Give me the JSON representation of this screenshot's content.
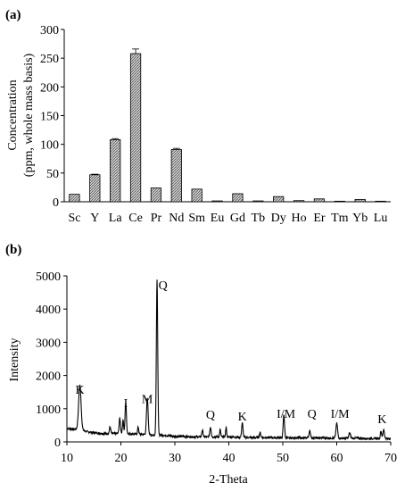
{
  "chart_data": [
    {
      "type": "bar",
      "panel_label": "(a)",
      "categories": [
        "Sc",
        "Y",
        "La",
        "Ce",
        "Pr",
        "Nd",
        "Sm",
        "Eu",
        "Gd",
        "Tb",
        "Dy",
        "Ho",
        "Er",
        "Tm",
        "Yb",
        "Lu"
      ],
      "values": [
        13,
        47,
        108,
        258,
        24,
        91,
        22,
        1.5,
        14,
        1.5,
        9,
        2,
        5,
        1,
        4,
        1
      ],
      "errors": [
        0,
        1,
        2,
        8,
        0,
        2,
        0,
        0,
        0,
        0,
        0,
        0,
        0,
        0,
        0,
        0
      ],
      "ylabel": "Concentration",
      "ylabel_units": "(ppm, whole mass basis)",
      "ylim": [
        0,
        300
      ],
      "yticks": [
        0,
        50,
        100,
        150,
        200,
        250,
        300
      ],
      "bar_fill": "hatched-gray",
      "grid": false
    },
    {
      "type": "line",
      "panel_label": "(b)",
      "xlabel": "2-Theta",
      "ylabel": "Intensity",
      "xlim": [
        10,
        70
      ],
      "ylim": [
        0,
        5000
      ],
      "xticks": [
        10,
        20,
        30,
        40,
        50,
        60,
        70
      ],
      "yticks": [
        0,
        1000,
        2000,
        3000,
        4000,
        5000
      ],
      "baseline": [
        [
          10,
          400
        ],
        [
          11,
          390
        ],
        [
          12,
          380
        ],
        [
          14,
          300
        ],
        [
          16,
          260
        ],
        [
          18,
          250
        ],
        [
          20,
          260
        ],
        [
          22,
          240
        ],
        [
          24,
          230
        ],
        [
          26,
          210
        ],
        [
          28,
          200
        ],
        [
          30,
          170
        ],
        [
          32,
          160
        ],
        [
          34,
          150
        ],
        [
          36,
          150
        ],
        [
          38,
          150
        ],
        [
          40,
          150
        ],
        [
          42,
          140
        ],
        [
          44,
          130
        ],
        [
          46,
          130
        ],
        [
          48,
          130
        ],
        [
          50,
          120
        ],
        [
          52,
          120
        ],
        [
          54,
          120
        ],
        [
          56,
          120
        ],
        [
          58,
          120
        ],
        [
          60,
          110
        ],
        [
          62,
          110
        ],
        [
          64,
          110
        ],
        [
          66,
          100
        ],
        [
          68,
          100
        ],
        [
          70,
          100
        ]
      ],
      "peaks": [
        {
          "x": 12.4,
          "y": 1350,
          "w": 0.45
        },
        {
          "x": 18.0,
          "y": 200,
          "w": 0.25
        },
        {
          "x": 19.8,
          "y": 450,
          "w": 0.25
        },
        {
          "x": 20.4,
          "y": 420,
          "w": 0.2
        },
        {
          "x": 20.9,
          "y": 950,
          "w": 0.25
        },
        {
          "x": 23.2,
          "y": 220,
          "w": 0.2
        },
        {
          "x": 24.9,
          "y": 1100,
          "w": 0.3
        },
        {
          "x": 26.7,
          "y": 4650,
          "w": 0.25
        },
        {
          "x": 35.1,
          "y": 200,
          "w": 0.25
        },
        {
          "x": 36.6,
          "y": 300,
          "w": 0.25
        },
        {
          "x": 38.4,
          "y": 220,
          "w": 0.2
        },
        {
          "x": 39.5,
          "y": 280,
          "w": 0.2
        },
        {
          "x": 42.5,
          "y": 430,
          "w": 0.25
        },
        {
          "x": 45.8,
          "y": 150,
          "w": 0.25
        },
        {
          "x": 50.2,
          "y": 700,
          "w": 0.25
        },
        {
          "x": 55.0,
          "y": 200,
          "w": 0.3
        },
        {
          "x": 60.0,
          "y": 450,
          "w": 0.3
        },
        {
          "x": 62.4,
          "y": 160,
          "w": 0.3
        },
        {
          "x": 68.2,
          "y": 220,
          "w": 0.25
        },
        {
          "x": 68.7,
          "y": 280,
          "w": 0.25
        }
      ],
      "annotations": [
        {
          "text": "K",
          "x": 12.4,
          "y": 1450
        },
        {
          "text": "I",
          "x": 20.9,
          "y": 1050
        },
        {
          "text": "M",
          "x": 24.9,
          "y": 1170
        },
        {
          "text": "Q",
          "x": 27.8,
          "y": 4600
        },
        {
          "text": "Q",
          "x": 36.6,
          "y": 700
        },
        {
          "text": "K",
          "x": 42.5,
          "y": 650
        },
        {
          "text": "I/M",
          "x": 50.6,
          "y": 720
        },
        {
          "text": "Q",
          "x": 55.4,
          "y": 720
        },
        {
          "text": "I/M",
          "x": 60.6,
          "y": 720
        },
        {
          "text": "K",
          "x": 68.4,
          "y": 560
        }
      ],
      "line_color": "#000000",
      "grid": false
    }
  ]
}
